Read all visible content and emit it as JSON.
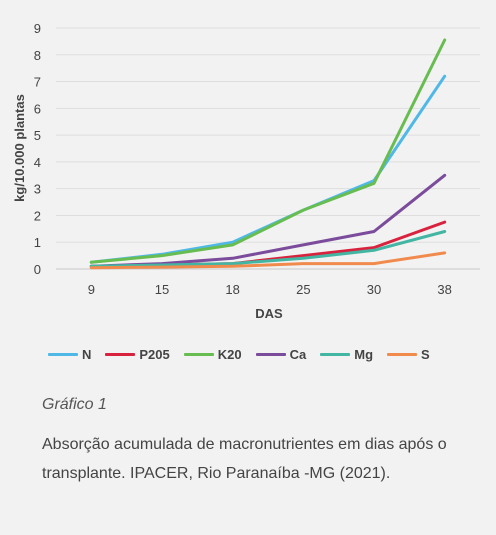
{
  "chart_data": {
    "type": "line",
    "categories": [
      "9",
      "15",
      "18",
      "25",
      "30",
      "38"
    ],
    "xlabel": "DAS",
    "ylabel": "kg/10.000 plantas",
    "ylim": [
      0,
      9
    ],
    "yticks": [
      "0",
      "1",
      "2",
      "3",
      "4",
      "5",
      "6",
      "7",
      "8",
      "9"
    ],
    "grid": true,
    "legend_position": "bottom",
    "series": [
      {
        "name": "N",
        "color": "#4fb8e7",
        "values": [
          0.25,
          0.55,
          1.0,
          2.2,
          3.3,
          7.2
        ]
      },
      {
        "name": "P205",
        "color": "#d9223d",
        "values": [
          0.1,
          0.15,
          0.2,
          0.5,
          0.8,
          1.75
        ]
      },
      {
        "name": "K20",
        "color": "#68bd51",
        "values": [
          0.25,
          0.5,
          0.9,
          2.2,
          3.2,
          8.55
        ]
      },
      {
        "name": "Ca",
        "color": "#7b4b9c",
        "values": [
          0.1,
          0.2,
          0.4,
          0.9,
          1.4,
          3.5
        ]
      },
      {
        "name": "Mg",
        "color": "#43b6a3",
        "values": [
          0.1,
          0.15,
          0.2,
          0.4,
          0.7,
          1.4
        ]
      },
      {
        "name": "S",
        "color": "#f08b4d",
        "values": [
          0.05,
          0.07,
          0.1,
          0.2,
          0.2,
          0.6
        ]
      }
    ]
  },
  "caption": {
    "title": "Gráfico 1",
    "text": "Absorção acumulada de macronutrientes em dias após o transplante. IPACER, Rio Paranaíba -MG (2021)."
  }
}
